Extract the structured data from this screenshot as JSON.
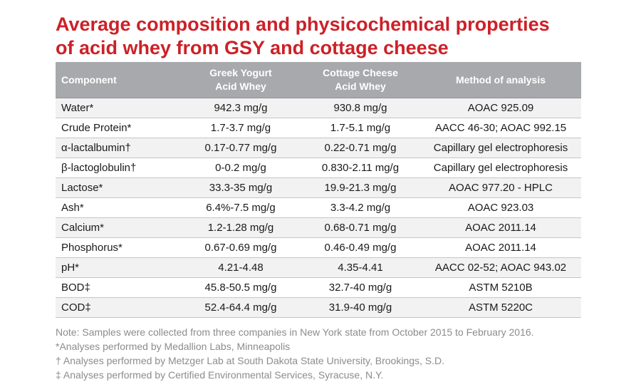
{
  "title": {
    "line1": "Average composition and physicochemical properties",
    "line2": "of acid whey from GSY and cottage cheese"
  },
  "table": {
    "headers": {
      "component": "Component",
      "greek_line1": "Greek Yogurt",
      "greek_line2": "Acid Whey",
      "cottage_line1": "Cottage Cheese",
      "cottage_line2": "Acid Whey",
      "method": "Method of analysis"
    },
    "rows": [
      {
        "component": "Water*",
        "greek": "942.3 mg/g",
        "cottage": "930.8 mg/g",
        "method": "AOAC 925.09"
      },
      {
        "component": "Crude Protein*",
        "greek": "1.7-3.7 mg/g",
        "cottage": "1.7-5.1 mg/g",
        "method": "AACC 46-30; AOAC 992.15"
      },
      {
        "component": "α-lactalbumin†",
        "greek": "0.17-0.77 mg/g",
        "cottage": "0.22-0.71 mg/g",
        "method": "Capillary gel electrophoresis"
      },
      {
        "component": "β-lactoglobulin†",
        "greek": "0-0.2 mg/g",
        "cottage": "0.830-2.11 mg/g",
        "method": "Capillary gel electrophoresis"
      },
      {
        "component": "Lactose*",
        "greek": "33.3-35 mg/g",
        "cottage": "19.9-21.3 mg/g",
        "method": "AOAC 977.20 - HPLC"
      },
      {
        "component": "Ash*",
        "greek": "6.4%-7.5 mg/g",
        "cottage": "3.3-4.2 mg/g",
        "method": "AOAC 923.03"
      },
      {
        "component": "Calcium*",
        "greek": "1.2-1.28 mg/g",
        "cottage": "0.68-0.71 mg/g",
        "method": "AOAC 2011.14"
      },
      {
        "component": "Phosphorus*",
        "greek": "0.67-0.69 mg/g",
        "cottage": "0.46-0.49 mg/g",
        "method": "AOAC 2011.14"
      },
      {
        "component": "pH*",
        "greek": "4.21-4.48",
        "cottage": "4.35-4.41",
        "method": "AACC 02-52; AOAC 943.02"
      },
      {
        "component": "BOD‡",
        "greek": "45.8-50.5 mg/g",
        "cottage": "32.7-40 mg/g",
        "method": "ASTM 5210B"
      },
      {
        "component": "COD‡",
        "greek": "52.4-64.4 mg/g",
        "cottage": "31.9-40 mg/g",
        "method": "ASTM 5220C"
      }
    ]
  },
  "notes": [
    "Note: Samples were collected from three companies in New York state from October 2015 to February 2016.",
    "*Analyses performed by Medallion Labs, Minneapolis",
    "† Analyses performed by Metzger Lab at South Dakota State University, Brookings, S.D.",
    "‡ Analyses performed by Certified Environmental Services, Syracuse, N.Y."
  ],
  "colors": {
    "title": "#cc2128",
    "header_bg": "#a7a9ac",
    "stripe": "#f2f2f3",
    "notes": "#8a8c8f"
  }
}
